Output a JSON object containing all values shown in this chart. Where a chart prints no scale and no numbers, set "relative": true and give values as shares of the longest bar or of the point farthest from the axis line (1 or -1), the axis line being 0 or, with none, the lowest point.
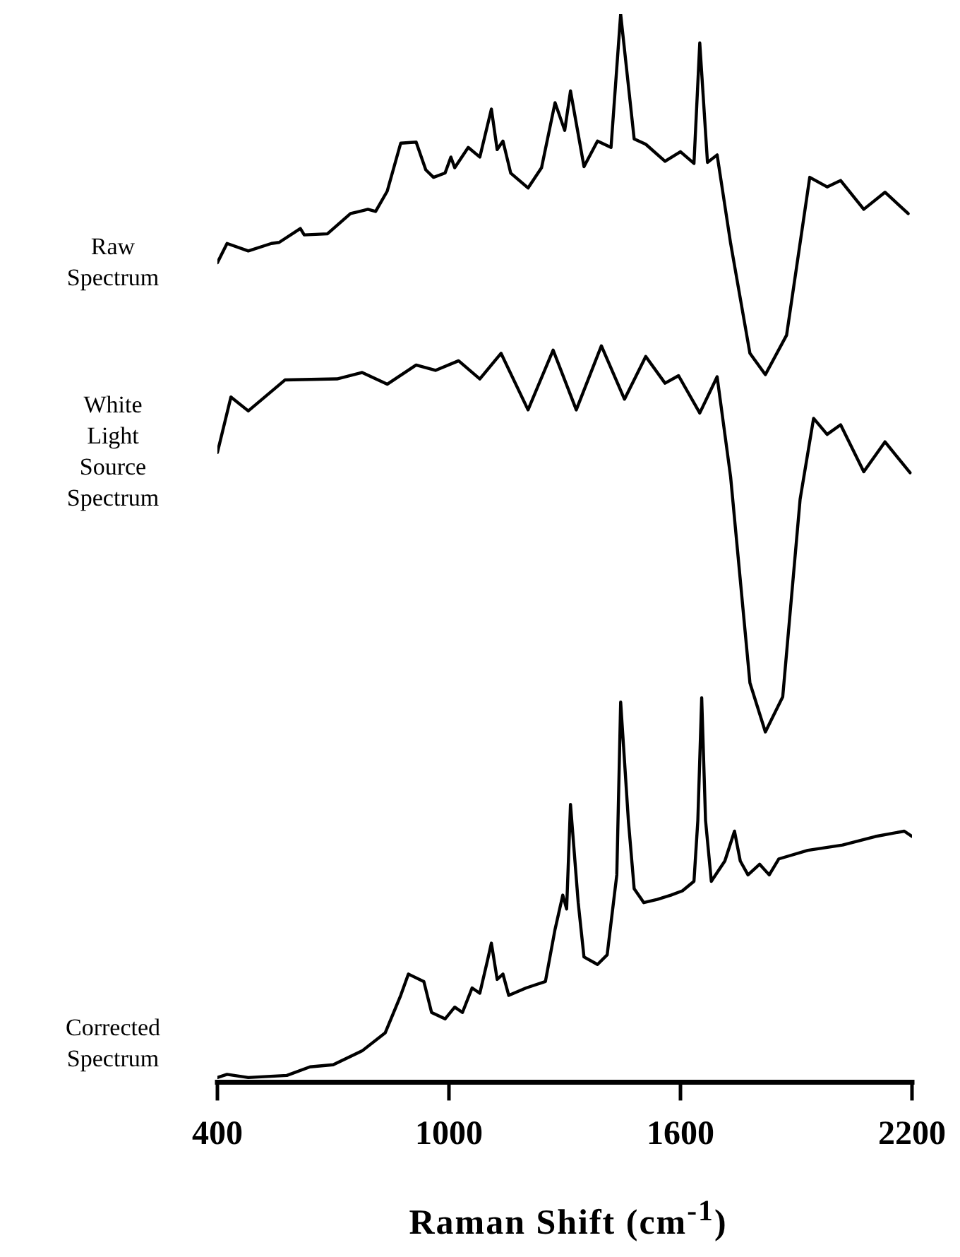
{
  "chart_data": {
    "type": "line",
    "relative": true,
    "xlabel": "Raman Shift (cm$^{-1}$)",
    "xlim": [
      400,
      2200
    ],
    "xticks": [
      400,
      1000,
      1600,
      2200
    ],
    "grid": false,
    "legend": false,
    "marker": "none",
    "line_style": "solid",
    "series": [
      {
        "name": "Raw Spectrum",
        "color": "#000000",
        "x": [
          400,
          425,
          480,
          540,
          560,
          615,
          625,
          685,
          745,
          790,
          810,
          840,
          875,
          915,
          940,
          960,
          990,
          1005,
          1015,
          1050,
          1080,
          1110,
          1125,
          1140,
          1160,
          1205,
          1240,
          1275,
          1300,
          1315,
          1350,
          1385,
          1420,
          1445,
          1480,
          1510,
          1560,
          1600,
          1635,
          1650,
          1670,
          1695,
          1730,
          1780,
          1820,
          1875,
          1935,
          1980,
          2015,
          2075,
          2130,
          2190
        ],
        "values": [
          0.767,
          0.785,
          0.778,
          0.785,
          0.786,
          0.799,
          0.793,
          0.794,
          0.813,
          0.817,
          0.815,
          0.834,
          0.879,
          0.88,
          0.854,
          0.847,
          0.851,
          0.866,
          0.856,
          0.875,
          0.866,
          0.911,
          0.873,
          0.881,
          0.851,
          0.837,
          0.856,
          0.917,
          0.891,
          0.928,
          0.857,
          0.881,
          0.875,
          1.0,
          0.883,
          0.878,
          0.862,
          0.871,
          0.86,
          0.973,
          0.861,
          0.868,
          0.785,
          0.682,
          0.662,
          0.699,
          0.847,
          0.838,
          0.844,
          0.817,
          0.833,
          0.813
        ]
      },
      {
        "name": "White Light Source Spectrum",
        "color": "#000000",
        "x": [
          400,
          435,
          480,
          575,
          710,
          775,
          840,
          915,
          965,
          1025,
          1080,
          1135,
          1205,
          1270,
          1330,
          1395,
          1455,
          1510,
          1560,
          1595,
          1650,
          1695,
          1730,
          1780,
          1820,
          1865,
          1910,
          1945,
          1980,
          2015,
          2075,
          2130,
          2195
        ],
        "values": [
          0.589,
          0.641,
          0.628,
          0.657,
          0.658,
          0.664,
          0.653,
          0.671,
          0.666,
          0.675,
          0.658,
          0.682,
          0.629,
          0.685,
          0.629,
          0.689,
          0.639,
          0.679,
          0.654,
          0.661,
          0.626,
          0.66,
          0.566,
          0.373,
          0.327,
          0.36,
          0.545,
          0.621,
          0.606,
          0.615,
          0.571,
          0.599,
          0.57
        ]
      },
      {
        "name": "Corrected Spectrum",
        "color": "#000000",
        "x": [
          400,
          425,
          480,
          580,
          640,
          700,
          775,
          835,
          875,
          895,
          935,
          955,
          990,
          1015,
          1035,
          1060,
          1080,
          1100,
          1110,
          1125,
          1140,
          1155,
          1200,
          1250,
          1275,
          1295,
          1305,
          1315,
          1335,
          1350,
          1385,
          1410,
          1435,
          1445,
          1465,
          1480,
          1505,
          1540,
          1575,
          1605,
          1635,
          1645,
          1655,
          1665,
          1680,
          1715,
          1740,
          1755,
          1775,
          1805,
          1830,
          1855,
          1930,
          2020,
          2105,
          2180,
          2200
        ],
        "values": [
          0.003,
          0.006,
          0.003,
          0.005,
          0.013,
          0.015,
          0.028,
          0.045,
          0.08,
          0.1,
          0.093,
          0.064,
          0.058,
          0.069,
          0.064,
          0.087,
          0.082,
          0.113,
          0.129,
          0.095,
          0.1,
          0.08,
          0.087,
          0.093,
          0.142,
          0.174,
          0.161,
          0.259,
          0.167,
          0.116,
          0.109,
          0.118,
          0.193,
          0.355,
          0.244,
          0.18,
          0.167,
          0.17,
          0.174,
          0.178,
          0.187,
          0.244,
          0.359,
          0.244,
          0.187,
          0.206,
          0.234,
          0.206,
          0.193,
          0.203,
          0.193,
          0.208,
          0.216,
          0.221,
          0.229,
          0.234,
          0.229
        ]
      }
    ]
  }
}
